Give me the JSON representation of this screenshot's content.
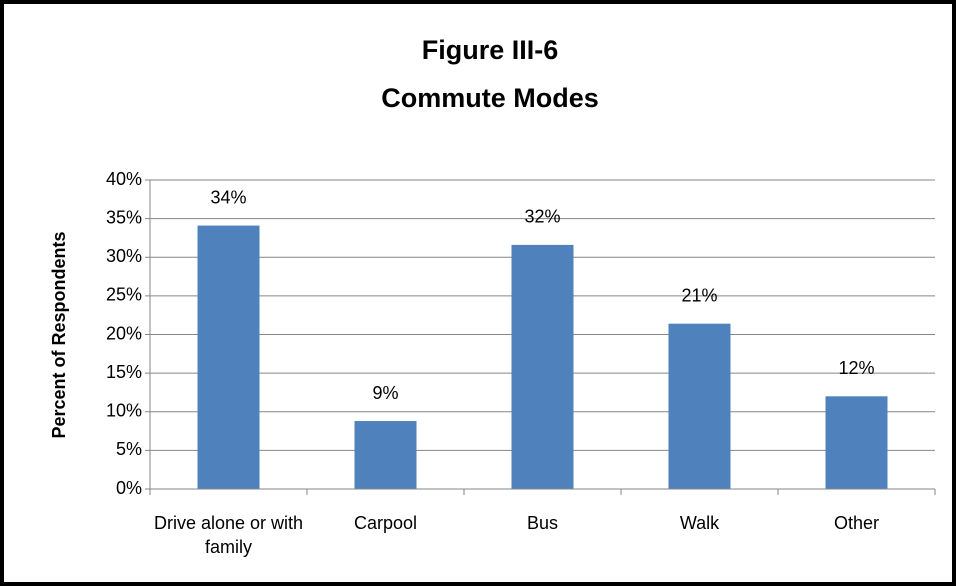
{
  "chart_data": {
    "type": "bar",
    "title": [
      "Figure III-6",
      "Commute Modes"
    ],
    "y_label": "Percent of Respondents",
    "categories": [
      "Drive alone or with family",
      "Carpool",
      "Bus",
      "Walk",
      "Other"
    ],
    "values": [
      34.1,
      8.8,
      31.6,
      21.4,
      12.0
    ],
    "value_labels": [
      "34%",
      "9%",
      "32%",
      "21%",
      "12%"
    ],
    "color": "#4f81bd",
    "ylim": [
      0,
      40
    ],
    "yticks": [
      {
        "value": 0,
        "label": "0%"
      },
      {
        "value": 5,
        "label": "5%"
      },
      {
        "value": 10,
        "label": "10%"
      },
      {
        "value": 15,
        "label": "15%"
      },
      {
        "value": 20,
        "label": "20%"
      },
      {
        "value": 25,
        "label": "25%"
      },
      {
        "value": 30,
        "label": "30%"
      },
      {
        "value": 35,
        "label": "35%"
      },
      {
        "value": 40,
        "label": "40%"
      }
    ],
    "grid": true
  }
}
